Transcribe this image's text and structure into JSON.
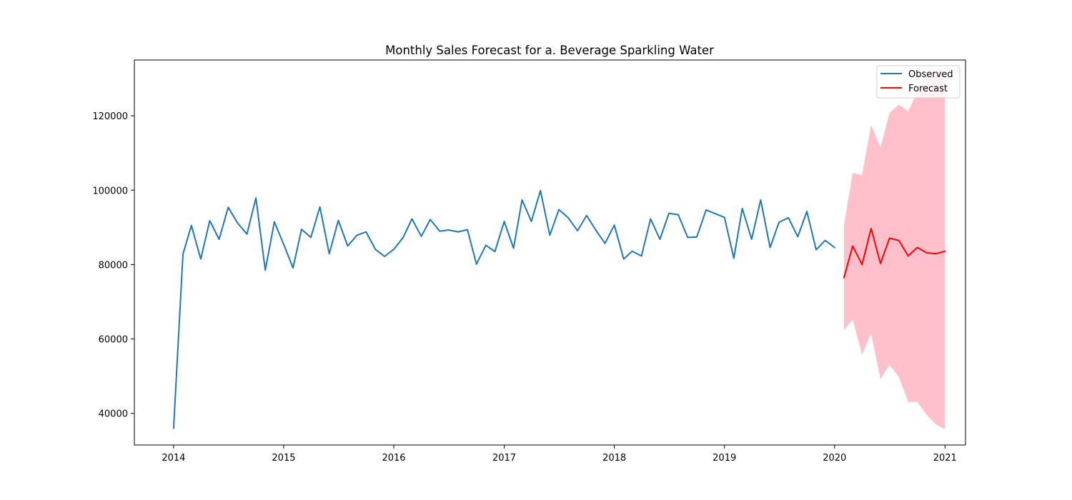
{
  "chart_data": {
    "type": "line",
    "title": "Monthly Sales Forecast for a. Beverage Sparkling Water",
    "xlabel": "",
    "ylabel": "",
    "xlim": [
      "2013-08-24",
      "2021-03-10"
    ],
    "ylim": [
      31500,
      135000
    ],
    "x_ticks": [
      {
        "date": "2014-01-01",
        "label": "2014"
      },
      {
        "date": "2015-01-01",
        "label": "2015"
      },
      {
        "date": "2016-01-01",
        "label": "2016"
      },
      {
        "date": "2017-01-01",
        "label": "2017"
      },
      {
        "date": "2018-01-01",
        "label": "2018"
      },
      {
        "date": "2019-01-01",
        "label": "2019"
      },
      {
        "date": "2020-01-01",
        "label": "2020"
      },
      {
        "date": "2021-01-01",
        "label": "2021"
      }
    ],
    "y_ticks": [
      {
        "value": 40000,
        "label": "40000"
      },
      {
        "value": 60000,
        "label": "60000"
      },
      {
        "value": 80000,
        "label": "80000"
      },
      {
        "value": 100000,
        "label": "100000"
      },
      {
        "value": 120000,
        "label": "120000"
      }
    ],
    "grid": false,
    "legend": {
      "placement": "top-right"
    },
    "series": [
      {
        "name": "Observed",
        "color": "#1f77b4",
        "x": [
          "2014-01-01",
          "2014-02-01",
          "2014-03-01",
          "2014-04-01",
          "2014-05-01",
          "2014-06-01",
          "2014-07-01",
          "2014-08-01",
          "2014-09-01",
          "2014-10-01",
          "2014-11-01",
          "2014-12-01",
          "2015-01-01",
          "2015-02-01",
          "2015-03-01",
          "2015-04-01",
          "2015-05-01",
          "2015-06-01",
          "2015-07-01",
          "2015-08-01",
          "2015-09-01",
          "2015-10-01",
          "2015-11-01",
          "2015-12-01",
          "2016-01-01",
          "2016-02-01",
          "2016-03-01",
          "2016-04-01",
          "2016-05-01",
          "2016-06-01",
          "2016-07-01",
          "2016-08-01",
          "2016-09-01",
          "2016-10-01",
          "2016-11-01",
          "2016-12-01",
          "2017-01-01",
          "2017-02-01",
          "2017-03-01",
          "2017-04-01",
          "2017-05-01",
          "2017-06-01",
          "2017-07-01",
          "2017-08-01",
          "2017-09-01",
          "2017-10-01",
          "2017-11-01",
          "2017-12-01",
          "2018-01-01",
          "2018-02-01",
          "2018-03-01",
          "2018-04-01",
          "2018-05-01",
          "2018-06-01",
          "2018-07-01",
          "2018-08-01",
          "2018-09-01",
          "2018-10-01",
          "2018-11-01",
          "2018-12-01",
          "2019-01-01",
          "2019-02-01",
          "2019-03-01",
          "2019-04-01",
          "2019-05-01",
          "2019-06-01",
          "2019-07-01",
          "2019-08-01",
          "2019-09-01",
          "2019-10-01",
          "2019-11-01",
          "2019-12-01",
          "2020-01-01"
        ],
        "values": [
          36000,
          82800,
          90500,
          81500,
          91800,
          86800,
          95400,
          91200,
          88200,
          97900,
          78500,
          91500,
          85400,
          79100,
          89500,
          87300,
          95500,
          82900,
          91900,
          85000,
          87900,
          88800,
          84100,
          82200,
          84100,
          87300,
          92300,
          87600,
          92100,
          89000,
          89300,
          88800,
          89400,
          80100,
          85200,
          83500,
          91600,
          84400,
          97400,
          91600,
          99900,
          87900,
          94800,
          92600,
          89100,
          93200,
          89200,
          85700,
          90600,
          81500,
          83600,
          82300,
          92300,
          86800,
          93800,
          93400,
          87300,
          87400,
          94700,
          93700,
          92700,
          81700,
          95100,
          86800,
          97400,
          84600,
          91400,
          92600,
          87500,
          94300,
          84000,
          86500,
          84600
        ]
      },
      {
        "name": "Forecast",
        "color": "#ff0000",
        "x": [
          "2020-02-01",
          "2020-03-01",
          "2020-04-01",
          "2020-05-01",
          "2020-06-01",
          "2020-07-01",
          "2020-08-01",
          "2020-09-01",
          "2020-10-01",
          "2020-11-01",
          "2020-12-01",
          "2021-01-01"
        ],
        "values": [
          76500,
          85000,
          80000,
          89700,
          80300,
          87100,
          86500,
          82300,
          84600,
          83200,
          82900,
          83600
        ],
        "interval_lower": [
          62300,
          65300,
          55800,
          61500,
          49200,
          53000,
          49800,
          43100,
          43100,
          39600,
          37100,
          35700
        ],
        "interval_upper": [
          90600,
          104600,
          104100,
          117500,
          111500,
          120800,
          123000,
          121200,
          126400,
          129000,
          131000,
          131000
        ],
        "interval_color": "#ffc0cb"
      }
    ]
  }
}
